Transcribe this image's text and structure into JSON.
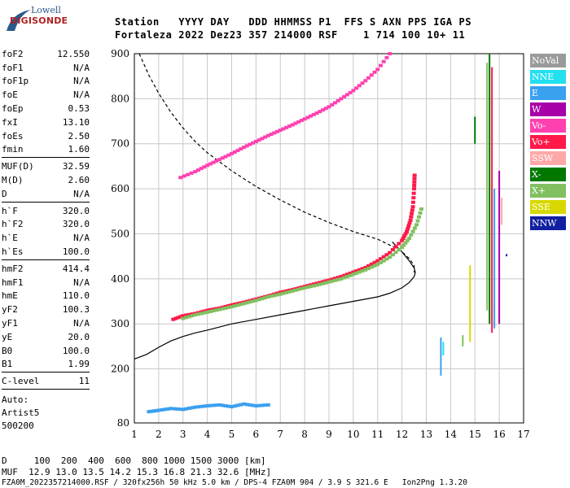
{
  "logo": {
    "line1": "Lowell",
    "line2": "DIGISONDE"
  },
  "header": {
    "line1": "Station   YYYY DAY   DDD HHMMSS P1  FFS S AXN PPS IGA PS",
    "line2": "Fortaleza 2022 Dez23 357 214000 RSF    1 714 100 10+ 11"
  },
  "params_group1": [
    {
      "label": "foF2",
      "value": "12.550"
    },
    {
      "label": "foF1",
      "value": "N/A"
    },
    {
      "label": "foF1p",
      "value": "N/A"
    },
    {
      "label": "foE",
      "value": "N/A"
    },
    {
      "label": "foEp",
      "value": "0.53"
    },
    {
      "label": "fxI",
      "value": "13.10"
    },
    {
      "label": "foEs",
      "value": "2.50"
    },
    {
      "label": "fmin",
      "value": "1.60"
    }
  ],
  "params_group2": [
    {
      "label": "MUF(D)",
      "value": "32.59"
    },
    {
      "label": "M(D)",
      "value": "2.60"
    },
    {
      "label": "D",
      "value": "N/A"
    }
  ],
  "params_group3": [
    {
      "label": "h`F",
      "value": "320.0"
    },
    {
      "label": "h`F2",
      "value": "320.0"
    },
    {
      "label": "h`E",
      "value": "N/A"
    },
    {
      "label": "h`Es",
      "value": "100.0"
    }
  ],
  "params_group4": [
    {
      "label": "hmF2",
      "value": "414.4"
    },
    {
      "label": "hmF1",
      "value": "N/A"
    },
    {
      "label": "hmE",
      "value": "110.0"
    },
    {
      "label": "yF2",
      "value": "100.3"
    },
    {
      "label": "yF1",
      "value": "N/A"
    },
    {
      "label": "yE",
      "value": "20.0"
    },
    {
      "label": "B0",
      "value": "100.0"
    },
    {
      "label": "B1",
      "value": "1.99"
    }
  ],
  "params_group5": [
    {
      "label": "C-level",
      "value": "11"
    }
  ],
  "auto": {
    "line1": "Auto:",
    "line2": "Artist5",
    "line3": "500200"
  },
  "legend": [
    {
      "label": "NoVal",
      "color": "#9a9a9a"
    },
    {
      "label": "NNE",
      "color": "#22e0f0"
    },
    {
      "label": "E",
      "color": "#3aa0f0"
    },
    {
      "label": "W",
      "color": "#a800a8"
    },
    {
      "label": "Vo-",
      "color": "#ff40b0"
    },
    {
      "label": "Vo+",
      "color": "#ff1848"
    },
    {
      "label": "SSW",
      "color": "#ffa8a8"
    },
    {
      "label": "X-",
      "color": "#007800"
    },
    {
      "label": "X+",
      "color": "#80c060"
    },
    {
      "label": "SSE",
      "color": "#d8d800"
    },
    {
      "label": "NNW",
      "color": "#1020a0"
    }
  ],
  "bottom": {
    "line1": "D     100  200  400  600  800 1000 1500 3000 [km]",
    "line2": "MUF  12.9 13.0 13.5 14.2 15.3 16.8 21.3 32.6 [MHz]",
    "line3": "FZA0M_2022357214000.RSF / 320fx256h 50 kHz 5.0 km / DPS-4 FZA0M 904 / 3.9 S 321.6 E   Ion2Png 1.3.20"
  },
  "chart_data": {
    "type": "scatter",
    "title": "",
    "xlabel": "",
    "ylabel": "",
    "xlim": [
      1,
      17
    ],
    "ylim": [
      80,
      900
    ],
    "x_ticks": [
      1,
      2,
      3,
      4,
      5,
      6,
      7,
      8,
      9,
      10,
      11,
      12,
      13,
      14,
      15,
      16,
      17
    ],
    "y_ticks": [
      80,
      200,
      300,
      400,
      500,
      600,
      700,
      800,
      900
    ],
    "grid": true,
    "series": [
      {
        "role": "O-trace F2",
        "color": "#ff1848",
        "x": [
          2.6,
          3.0,
          3.5,
          4.0,
          4.5,
          5.0,
          5.5,
          6.0,
          6.5,
          7.0,
          7.5,
          8.0,
          8.5,
          9.0,
          9.5,
          10.0,
          10.5,
          11.0,
          11.5,
          12.0,
          12.2,
          12.35,
          12.45,
          12.5,
          12.52
        ],
        "y": [
          310,
          318,
          323,
          330,
          335,
          342,
          348,
          355,
          362,
          370,
          376,
          383,
          390,
          397,
          405,
          415,
          425,
          440,
          458,
          485,
          505,
          530,
          560,
          600,
          630
        ]
      },
      {
        "role": "X-trace F2",
        "color": "#80c060",
        "x": [
          3.0,
          3.5,
          4.0,
          4.5,
          5.0,
          5.5,
          6.0,
          6.5,
          7.0,
          7.5,
          8.0,
          8.5,
          9.0,
          9.5,
          10.0,
          10.5,
          11.0,
          11.5,
          12.0,
          12.3,
          12.6,
          12.8
        ],
        "y": [
          312,
          320,
          326,
          332,
          338,
          345,
          352,
          360,
          366,
          373,
          380,
          386,
          393,
          400,
          410,
          420,
          432,
          448,
          470,
          490,
          520,
          555
        ]
      },
      {
        "role": "2nd-hop F2",
        "color": "#ff40b0",
        "x": [
          2.9,
          3.5,
          4.0,
          4.5,
          5.0,
          5.5,
          6.0,
          6.5,
          7.0,
          7.5,
          8.0,
          8.5,
          9.0,
          9.5,
          10.0,
          10.5,
          11.0,
          11.5
        ],
        "y": [
          625,
          638,
          652,
          665,
          678,
          692,
          705,
          718,
          730,
          742,
          755,
          768,
          782,
          800,
          818,
          840,
          865,
          900
        ]
      },
      {
        "role": "Es",
        "color": "#3aa0f0",
        "x": [
          1.6,
          2.0,
          2.5,
          3.0,
          3.5,
          4.0,
          4.5,
          5.0,
          5.5,
          6.0,
          6.5
        ],
        "y": [
          105,
          108,
          112,
          110,
          115,
          118,
          120,
          116,
          122,
          118,
          120
        ]
      }
    ],
    "profile_solid": {
      "x": [
        1.0,
        1.5,
        2.0,
        2.5,
        3.0,
        3.5,
        4.0,
        5.0,
        6.0,
        7.0,
        8.0,
        9.0,
        10.0,
        11.0,
        11.5,
        12.0,
        12.3,
        12.5,
        12.55,
        12.5,
        12.3,
        12.0,
        11.6
      ],
      "y": [
        222,
        232,
        248,
        262,
        272,
        280,
        286,
        300,
        310,
        320,
        330,
        340,
        350,
        360,
        368,
        380,
        392,
        405,
        414,
        424,
        440,
        460,
        482
      ]
    },
    "profile_dashed": {
      "x": [
        1.2,
        1.6,
        2.0,
        2.5,
        3.0,
        3.5,
        4.0,
        5.0,
        6.0,
        7.0,
        8.0,
        9.0,
        10.0,
        11.0,
        11.5,
        12.0,
        12.3,
        12.5,
        12.5
      ],
      "y": [
        900,
        852,
        812,
        770,
        735,
        705,
        680,
        640,
        605,
        575,
        548,
        525,
        505,
        488,
        475,
        460,
        445,
        430,
        414
      ]
    },
    "vertical_clutter": {
      "x": [
        13.6,
        13.7,
        14.5,
        14.8,
        15.0,
        15.5,
        15.6,
        15.7,
        15.8,
        16.0,
        16.1,
        16.3
      ],
      "y_ranges": [
        [
          185,
          270
        ],
        [
          230,
          260
        ],
        [
          250,
          275
        ],
        [
          260,
          430
        ],
        [
          700,
          760
        ],
        [
          330,
          880
        ],
        [
          300,
          900
        ],
        [
          280,
          870
        ],
        [
          290,
          600
        ],
        [
          300,
          640
        ],
        [
          520,
          580
        ],
        [
          450,
          455
        ]
      ]
    }
  }
}
